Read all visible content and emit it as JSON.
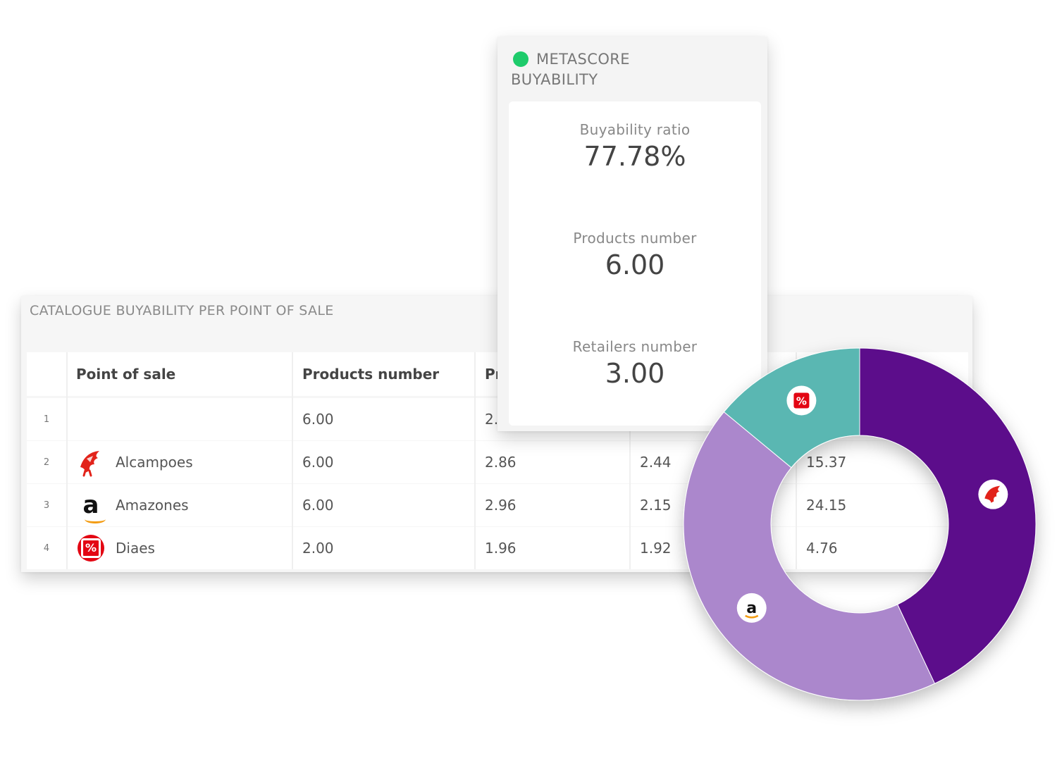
{
  "table": {
    "title": "CATALOGUE BUYABILITY PER POINT OF SALE",
    "headers": [
      "",
      "Point of sale",
      "Products number",
      "Pr",
      "",
      ""
    ],
    "rows": [
      {
        "index": "1",
        "point_of_sale": "",
        "logo": "",
        "products_number": "6.00",
        "col3": "2.",
        "col4": "",
        "col5": ""
      },
      {
        "index": "2",
        "point_of_sale": "Alcampoes",
        "logo": "alcampo-bird-logo",
        "products_number": "6.00",
        "col3": "2.86",
        "col4": "2.44",
        "col5": "15.37"
      },
      {
        "index": "3",
        "point_of_sale": "Amazones",
        "logo": "amazon-logo",
        "products_number": "6.00",
        "col3": "2.96",
        "col4": "2.15",
        "col5": "24.15"
      },
      {
        "index": "4",
        "point_of_sale": "Diaes",
        "logo": "dia-logo",
        "products_number": "2.00",
        "col3": "1.96",
        "col4": "1.92",
        "col5": "4.76"
      }
    ]
  },
  "metascore": {
    "status_color": "#1ecb6b",
    "title": "METASCORE BUYABILITY",
    "metrics": [
      {
        "label": "Buyability ratio",
        "value": "77.78%"
      },
      {
        "label": "Products number",
        "value": "6.00"
      },
      {
        "label": "Retailers number",
        "value": "3.00"
      }
    ]
  },
  "chart_data": {
    "type": "pie",
    "donut": true,
    "series": [
      {
        "icon": "alcampo-bird-logo",
        "value": 43,
        "color": "#5b0f8b"
      },
      {
        "icon": "amazon-logo",
        "value": 43,
        "color": "#ab87cc"
      },
      {
        "icon": "dia-logo",
        "value": 14,
        "color": "#5ab7b2"
      }
    ],
    "title": ""
  }
}
